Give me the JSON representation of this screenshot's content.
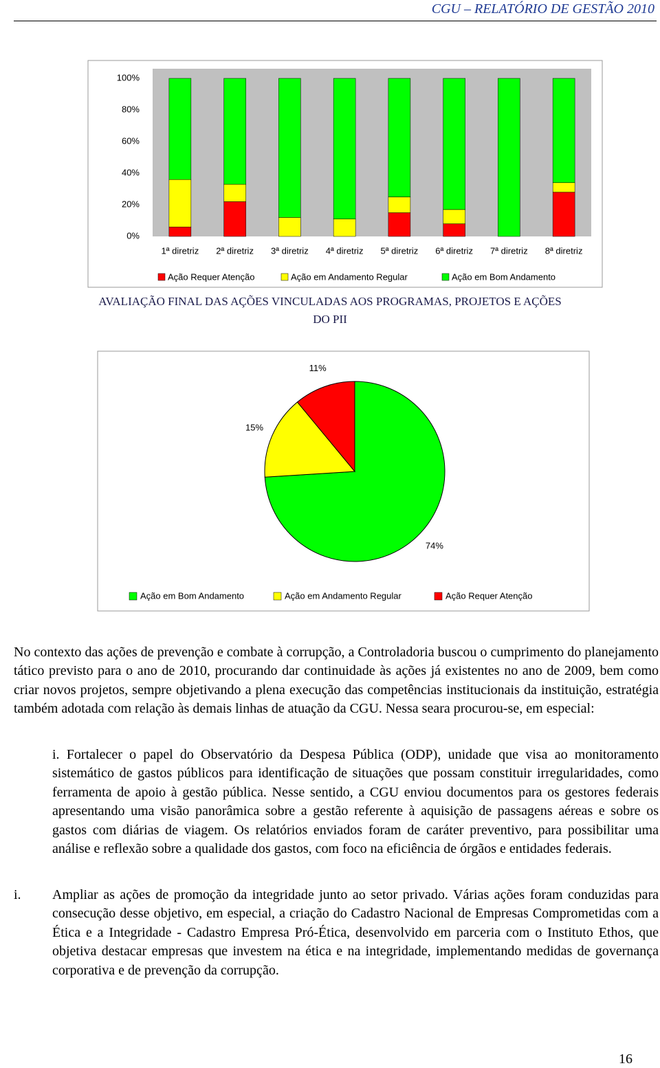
{
  "header": {
    "title": "CGU – RELATÓRIO DE GESTÃO 2010"
  },
  "chart_data": [
    {
      "type": "bar",
      "stacked": true,
      "categories": [
        "1ª diretriz",
        "2ª diretriz",
        "3ª diretriz",
        "4ª diretriz",
        "5ª diretriz",
        "6ª diretriz",
        "7ª diretriz",
        "8ª diretriz"
      ],
      "series": [
        {
          "name": "Ação Requer Atenção",
          "color": "#ff0000",
          "values": [
            6,
            22,
            0,
            0,
            15,
            8,
            0,
            28
          ]
        },
        {
          "name": "Ação em Andamento Regular",
          "color": "#ffff00",
          "values": [
            30,
            11,
            12,
            11,
            10,
            9,
            0,
            6
          ]
        },
        {
          "name": "Ação em Bom Andamento",
          "color": "#00ff00",
          "values": [
            64,
            67,
            88,
            89,
            75,
            83,
            100,
            66
          ]
        }
      ],
      "ylim": [
        0,
        100
      ],
      "yticks": [
        {
          "value": 0,
          "label": "0%"
        },
        {
          "value": 20,
          "label": "20%"
        },
        {
          "value": 40,
          "label": "40%"
        },
        {
          "value": 60,
          "label": "60%"
        },
        {
          "value": 80,
          "label": "80%"
        },
        {
          "value": 100,
          "label": "100%"
        }
      ],
      "grid": false,
      "legend": "bottom"
    },
    {
      "type": "pie",
      "categories": [
        "Ação em Bom Andamento",
        "Ação em Andamento Regular",
        "Ação Requer Atenção"
      ],
      "values": [
        74,
        15,
        11
      ],
      "value_labels": [
        "74%",
        "15%",
        "11%"
      ],
      "colors": [
        "#00ff00",
        "#ffff00",
        "#ff0000"
      ],
      "legend": "bottom"
    }
  ],
  "caption": "AVALIAÇÃO FINAL DAS AÇÕES VINCULADAS AOS PROGRAMAS, PROJETOS E AÇÕES DO PII",
  "paragraph": "No contexto das ações de prevenção e combate à corrupção, a Controladoria buscou o cumprimento do planejamento tático previsto para o ano de 2010, procurando dar continuidade às ações já existentes no ano de 2009, bem como criar novos projetos, sempre objetivando a plena execução das competências institucionais da instituição, estratégia também adotada com relação às demais linhas de atuação da CGU. Nessa seara procurou-se, em especial:",
  "items": [
    {
      "marker": "i.",
      "text": "Fortalecer o papel do Observatório da Despesa Pública (ODP), unidade que visa ao monitoramento sistemático de gastos públicos para identificação de situações que possam constituir irregularidades, como ferramenta de apoio à gestão pública. Nesse sentido, a CGU enviou documentos para os gestores federais apresentando uma visão panorâmica sobre a gestão referente à aquisição de passagens aéreas e sobre os gastos com diárias de viagem. Os relatórios enviados foram de caráter preventivo, para possibilitar uma análise e reflexão sobre a qualidade dos gastos, com foco na eficiência de órgãos e entidades federais."
    },
    {
      "marker": "i.",
      "text": "Ampliar as ações de promoção da integridade junto ao setor privado. Várias ações foram conduzidas para consecução desse objetivo, em especial, a criação do Cadastro Nacional de Empresas Comprometidas com a Ética e a Integridade - Cadastro Empresa Pró-Ética, desenvolvido em parceria com o Instituto Ethos, que objetiva destacar empresas que investem na ética e na integridade, implementando medidas de governança corporativa e de prevenção da corrupção."
    }
  ],
  "page_number": "16"
}
